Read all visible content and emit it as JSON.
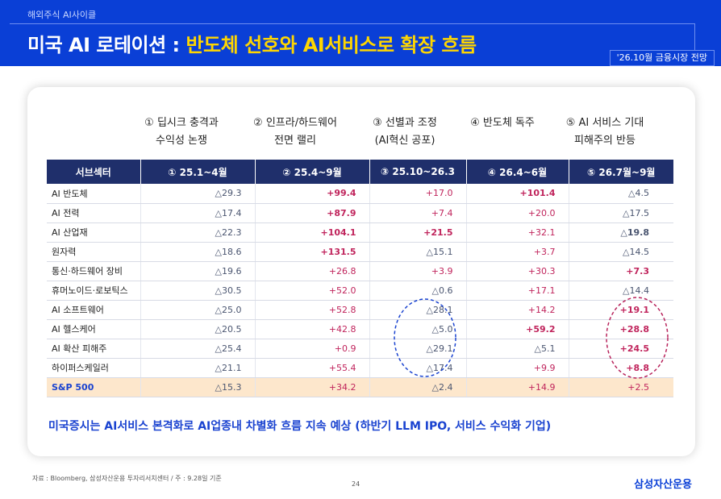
{
  "header": {
    "kicker": "해외주식 AI사이클",
    "title_white": "미국 AI 로테이션 : ",
    "title_yellow": "반도체 선호와 AI서비스로 확장 흐름",
    "date_badge": "'26.10월 금융시장 전망"
  },
  "phases": [
    {
      "line1": "① 딥시크 충격과",
      "line2": "수익성 논쟁"
    },
    {
      "line1": "② 인프라/하드웨어",
      "line2": "전면 랠리"
    },
    {
      "line1": "③ 선별과 조정",
      "line2": "(AI혁신 공포)"
    },
    {
      "line1": "④ 반도체 독주",
      "line2": ""
    },
    {
      "line1": "⑤ AI 서비스 기대",
      "line2": "피해주의 반등"
    }
  ],
  "table": {
    "headers": [
      "서브섹터",
      "① 25.1~4월",
      "② 25.4~9월",
      "③ 25.10~26.3",
      "④ 26.4~6월",
      "⑤ 26.7월~9월"
    ],
    "rows": [
      [
        "AI 반도체",
        "△29.3",
        "+99.4",
        "+17.0",
        "+101.4",
        "△4.5"
      ],
      [
        "AI 전력",
        "△17.4",
        "+87.9",
        "+7.4",
        "+20.0",
        "△17.5"
      ],
      [
        "AI 산업재",
        "△22.3",
        "+104.1",
        "+21.5",
        "+32.1",
        "△19.8"
      ],
      [
        "원자력",
        "△18.6",
        "+131.5",
        "△15.1",
        "+3.7",
        "△14.5"
      ],
      [
        "통신·하드웨어 장비",
        "△19.6",
        "+26.8",
        "+3.9",
        "+30.3",
        "+7.3"
      ],
      [
        "휴머노이드·로보틱스",
        "△30.5",
        "+52.0",
        "△0.6",
        "+17.1",
        "△14.4"
      ],
      [
        "AI 소프트웨어",
        "△25.0",
        "+52.8",
        "△28.1",
        "+14.2",
        "+19.1"
      ],
      [
        "AI 헬스케어",
        "△20.5",
        "+42.8",
        "△5.0",
        "+59.2",
        "+28.8"
      ],
      [
        "AI 확산 피해주",
        "△25.4",
        "+0.9",
        "△29.1",
        "△5.1",
        "+24.5"
      ],
      [
        "하이퍼스케일러",
        "△21.1",
        "+55.4",
        "△17.4",
        "+9.9",
        "+8.8"
      ],
      [
        "S&P 500",
        "△15.3",
        "+34.2",
        "△2.4",
        "+14.9",
        "+2.5"
      ]
    ]
  },
  "summary": "미국증시는 AI서비스 본격화로 AI업종내 차별화 흐름 지속 예상 (하반기 LLM IPO, 서비스 수익화 기업)",
  "source": "자료 : Bloomberg, 삼성자산운용 투자리서치센터 / 주 : 9.28일 기준",
  "page_number": "24",
  "logo": "삼성자산운용",
  "colors": {
    "header_blue": "#0a3fd6",
    "title_yellow": "#ffd600",
    "table_header": "#1f2f6b",
    "positive": "#c0245c",
    "negative": "#4a5570",
    "sp500_row": "#fde7cc"
  }
}
